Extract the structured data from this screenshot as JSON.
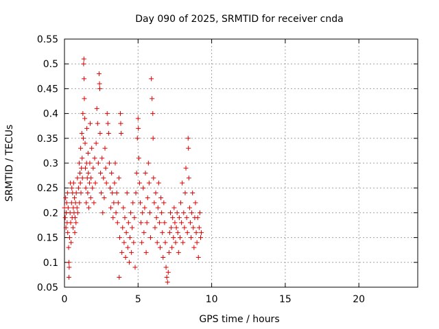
{
  "chart_data": {
    "type": "scatter",
    "title": "Day 090 of 2025, SRMTID for receiver cnda",
    "xlabel": "GPS time / hours",
    "ylabel": "SRMTID / TECUs",
    "xlim": [
      0,
      24
    ],
    "ylim": [
      0.05,
      0.55
    ],
    "xticks": [
      0,
      5,
      10,
      15,
      20
    ],
    "xtick_labels": [
      "0",
      "5",
      "10",
      "15",
      "20"
    ],
    "yticks": [
      0.05,
      0.1,
      0.15,
      0.2,
      0.25,
      0.3,
      0.35,
      0.4,
      0.45,
      0.5,
      0.55
    ],
    "ytick_labels": [
      "0.05",
      "0.1",
      "0.15",
      "0.2",
      "0.25",
      "0.3",
      "0.35",
      "0.4",
      "0.45",
      "0.5",
      "0.55"
    ],
    "grid": true,
    "marker": "+",
    "color": "#dd0000",
    "series": [
      {
        "points": [
          [
            0.0,
            0.21
          ],
          [
            0.05,
            0.19
          ],
          [
            0.08,
            0.23
          ],
          [
            0.1,
            0.17
          ],
          [
            0.12,
            0.2
          ],
          [
            0.15,
            0.22
          ],
          [
            0.18,
            0.18
          ],
          [
            0.2,
            0.24
          ],
          [
            0.22,
            0.16
          ],
          [
            0.25,
            0.21
          ],
          [
            0.28,
            0.13
          ],
          [
            0.3,
            0.1
          ],
          [
            0.3,
            0.07
          ],
          [
            0.32,
            0.09
          ],
          [
            0.35,
            0.15
          ],
          [
            0.38,
            0.2
          ],
          [
            0.4,
            0.26
          ],
          [
            0.42,
            0.18
          ],
          [
            0.45,
            0.14
          ],
          [
            0.48,
            0.22
          ],
          [
            0.5,
            0.25
          ],
          [
            0.52,
            0.19
          ],
          [
            0.55,
            0.24
          ],
          [
            0.58,
            0.17
          ],
          [
            0.6,
            0.21
          ],
          [
            0.62,
            0.26
          ],
          [
            0.65,
            0.2
          ],
          [
            0.68,
            0.23
          ],
          [
            0.7,
            0.16
          ],
          [
            0.72,
            0.19
          ],
          [
            0.75,
            0.22
          ],
          [
            0.78,
            0.18
          ],
          [
            0.8,
            0.24
          ],
          [
            0.85,
            0.21
          ],
          [
            0.88,
            0.27
          ],
          [
            0.9,
            0.2
          ],
          [
            0.95,
            0.25
          ],
          [
            1.0,
            0.3
          ],
          [
            1.02,
            0.22
          ],
          [
            1.05,
            0.28
          ],
          [
            1.08,
            0.26
          ],
          [
            1.1,
            0.33
          ],
          [
            1.12,
            0.24
          ],
          [
            1.15,
            0.29
          ],
          [
            1.18,
            0.36
          ],
          [
            1.2,
            0.31
          ],
          [
            1.22,
            0.27
          ],
          [
            1.25,
            0.4
          ],
          [
            1.28,
            0.35
          ],
          [
            1.3,
            0.5
          ],
          [
            1.32,
            0.51
          ],
          [
            1.33,
            0.47
          ],
          [
            1.35,
            0.43
          ],
          [
            1.38,
            0.39
          ],
          [
            1.4,
            0.34
          ],
          [
            1.42,
            0.29
          ],
          [
            1.45,
            0.25
          ],
          [
            1.48,
            0.22
          ],
          [
            1.5,
            0.3
          ],
          [
            1.52,
            0.37
          ],
          [
            1.55,
            0.27
          ],
          [
            1.58,
            0.24
          ],
          [
            1.6,
            0.32
          ],
          [
            1.62,
            0.28
          ],
          [
            1.65,
            0.21
          ],
          [
            1.7,
            0.26
          ],
          [
            1.72,
            0.3
          ],
          [
            1.75,
            0.38
          ],
          [
            1.78,
            0.23
          ],
          [
            1.8,
            0.27
          ],
          [
            1.85,
            0.33
          ],
          [
            1.9,
            0.25
          ],
          [
            1.95,
            0.29
          ],
          [
            2.0,
            0.22
          ],
          [
            2.05,
            0.31
          ],
          [
            2.1,
            0.26
          ],
          [
            2.15,
            0.34
          ],
          [
            2.2,
            0.41
          ],
          [
            2.25,
            0.38
          ],
          [
            2.3,
            0.3
          ],
          [
            2.35,
            0.48
          ],
          [
            2.38,
            0.46
          ],
          [
            2.4,
            0.45
          ],
          [
            2.42,
            0.36
          ],
          [
            2.45,
            0.28
          ],
          [
            2.5,
            0.24
          ],
          [
            2.55,
            0.31
          ],
          [
            2.6,
            0.2
          ],
          [
            2.65,
            0.27
          ],
          [
            2.7,
            0.23
          ],
          [
            2.75,
            0.33
          ],
          [
            2.8,
            0.29
          ],
          [
            2.85,
            0.26
          ],
          [
            2.9,
            0.4
          ],
          [
            2.95,
            0.38
          ],
          [
            3.0,
            0.36
          ],
          [
            3.05,
            0.3
          ],
          [
            3.1,
            0.25
          ],
          [
            3.15,
            0.21
          ],
          [
            3.2,
            0.28
          ],
          [
            3.25,
            0.24
          ],
          [
            3.3,
            0.19
          ],
          [
            3.35,
            0.22
          ],
          [
            3.4,
            0.26
          ],
          [
            3.45,
            0.3
          ],
          [
            3.5,
            0.2
          ],
          [
            3.55,
            0.24
          ],
          [
            3.6,
            0.18
          ],
          [
            3.65,
            0.22
          ],
          [
            3.7,
            0.27
          ],
          [
            3.72,
            0.07
          ],
          [
            3.75,
            0.15
          ],
          [
            3.8,
            0.4
          ],
          [
            3.82,
            0.38
          ],
          [
            3.85,
            0.36
          ],
          [
            3.9,
            0.12
          ],
          [
            3.95,
            0.17
          ],
          [
            4.0,
            0.21
          ],
          [
            4.05,
            0.14
          ],
          [
            4.1,
            0.19
          ],
          [
            4.15,
            0.11
          ],
          [
            4.2,
            0.16
          ],
          [
            4.25,
            0.24
          ],
          [
            4.3,
            0.13
          ],
          [
            4.35,
            0.18
          ],
          [
            4.4,
            0.1
          ],
          [
            4.45,
            0.15
          ],
          [
            4.5,
            0.2
          ],
          [
            4.55,
            0.12
          ],
          [
            4.6,
            0.17
          ],
          [
            4.65,
            0.22
          ],
          [
            4.7,
            0.14
          ],
          [
            4.75,
            0.19
          ],
          [
            4.8,
            0.09
          ],
          [
            4.85,
            0.24
          ],
          [
            4.9,
            0.28
          ],
          [
            4.95,
            0.35
          ],
          [
            5.0,
            0.39
          ],
          [
            5.02,
            0.37
          ],
          [
            5.05,
            0.31
          ],
          [
            5.1,
            0.26
          ],
          [
            5.15,
            0.22
          ],
          [
            5.2,
            0.18
          ],
          [
            5.25,
            0.14
          ],
          [
            5.3,
            0.2
          ],
          [
            5.35,
            0.25
          ],
          [
            5.4,
            0.16
          ],
          [
            5.45,
            0.21
          ],
          [
            5.5,
            0.28
          ],
          [
            5.55,
            0.12
          ],
          [
            5.6,
            0.18
          ],
          [
            5.65,
            0.23
          ],
          [
            5.7,
            0.3
          ],
          [
            5.75,
            0.26
          ],
          [
            5.8,
            0.2
          ],
          [
            5.85,
            0.15
          ],
          [
            5.9,
            0.47
          ],
          [
            5.95,
            0.43
          ],
          [
            6.0,
            0.4
          ],
          [
            6.02,
            0.35
          ],
          [
            6.05,
            0.27
          ],
          [
            6.1,
            0.22
          ],
          [
            6.15,
            0.17
          ],
          [
            6.2,
            0.24
          ],
          [
            6.25,
            0.19
          ],
          [
            6.3,
            0.14
          ],
          [
            6.35,
            0.21
          ],
          [
            6.4,
            0.26
          ],
          [
            6.45,
            0.18
          ],
          [
            6.5,
            0.13
          ],
          [
            6.55,
            0.23
          ],
          [
            6.6,
            0.2
          ],
          [
            6.65,
            0.16
          ],
          [
            6.7,
            0.11
          ],
          [
            6.75,
            0.22
          ],
          [
            6.8,
            0.18
          ],
          [
            6.85,
            0.14
          ],
          [
            6.9,
            0.09
          ],
          [
            6.95,
            0.07
          ],
          [
            7.0,
            0.06
          ],
          [
            7.05,
            0.08
          ],
          [
            7.1,
            0.12
          ],
          [
            7.15,
            0.16
          ],
          [
            7.2,
            0.2
          ],
          [
            7.25,
            0.17
          ],
          [
            7.3,
            0.13
          ],
          [
            7.35,
            0.19
          ],
          [
            7.4,
            0.15
          ],
          [
            7.45,
            0.21
          ],
          [
            7.5,
            0.18
          ],
          [
            7.55,
            0.14
          ],
          [
            7.6,
            0.17
          ],
          [
            7.65,
            0.2
          ],
          [
            7.7,
            0.16
          ],
          [
            7.75,
            0.12
          ],
          [
            7.8,
            0.19
          ],
          [
            7.85,
            0.15
          ],
          [
            7.9,
            0.22
          ],
          [
            7.95,
            0.18
          ],
          [
            8.0,
            0.26
          ],
          [
            8.05,
            0.14
          ],
          [
            8.1,
            0.2
          ],
          [
            8.15,
            0.17
          ],
          [
            8.2,
            0.24
          ],
          [
            8.25,
            0.29
          ],
          [
            8.3,
            0.19
          ],
          [
            8.35,
            0.16
          ],
          [
            8.4,
            0.35
          ],
          [
            8.42,
            0.33
          ],
          [
            8.45,
            0.27
          ],
          [
            8.5,
            0.21
          ],
          [
            8.55,
            0.18
          ],
          [
            8.6,
            0.15
          ],
          [
            8.65,
            0.2
          ],
          [
            8.7,
            0.24
          ],
          [
            8.75,
            0.17
          ],
          [
            8.8,
            0.13
          ],
          [
            8.85,
            0.19
          ],
          [
            8.9,
            0.22
          ],
          [
            8.95,
            0.16
          ],
          [
            9.0,
            0.14
          ],
          [
            9.05,
            0.19
          ],
          [
            9.1,
            0.11
          ],
          [
            9.15,
            0.17
          ],
          [
            9.2,
            0.2
          ],
          [
            9.25,
            0.15
          ],
          [
            9.3,
            0.16
          ]
        ]
      }
    ]
  }
}
